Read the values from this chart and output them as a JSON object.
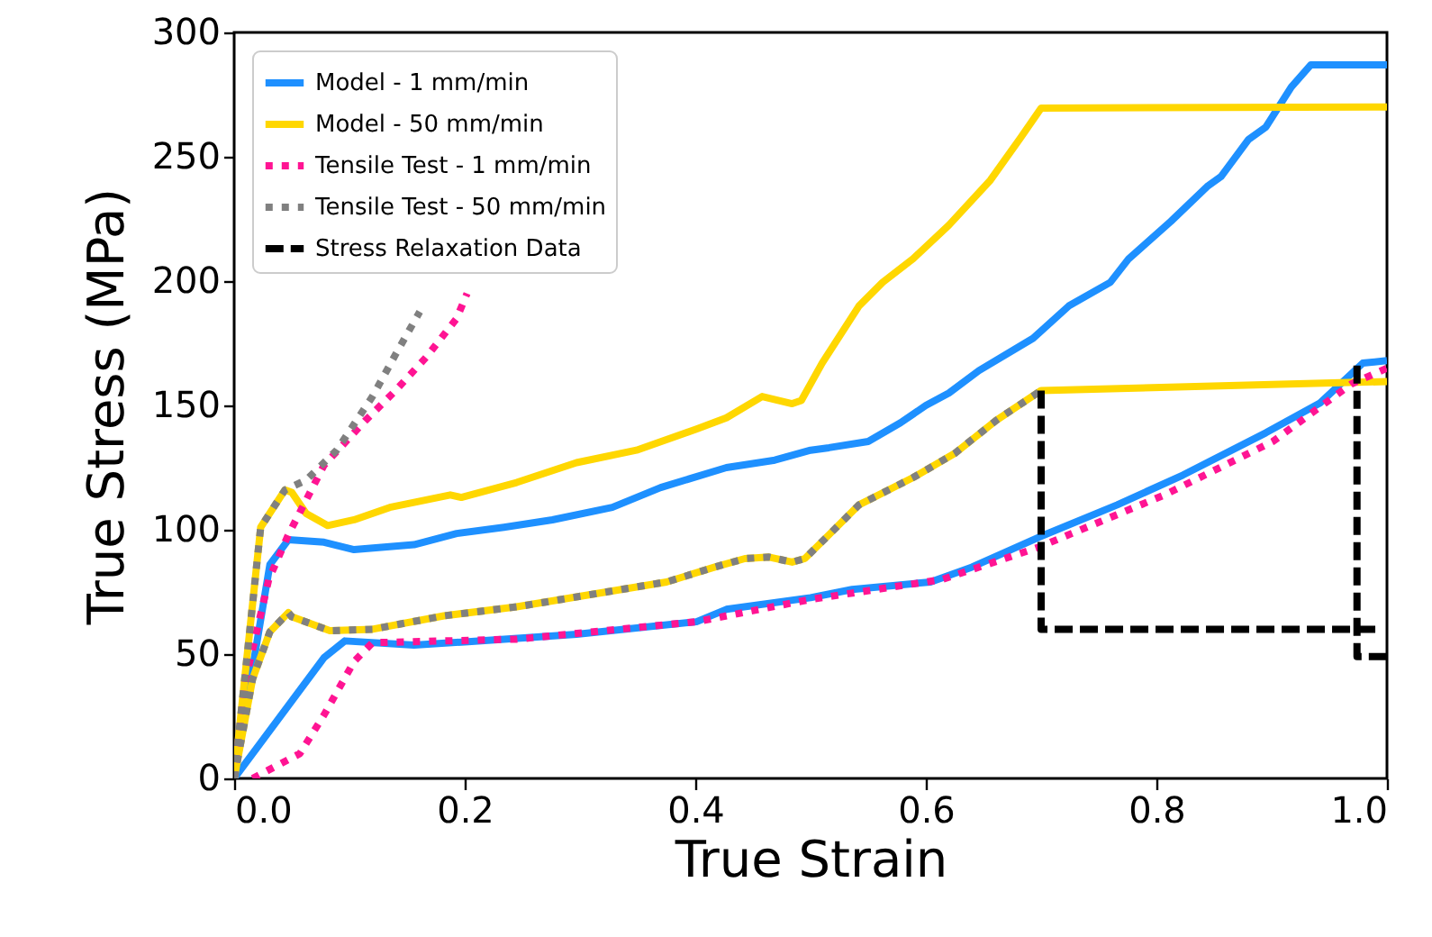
{
  "chart_data": {
    "type": "line",
    "xlabel": "True Strain",
    "ylabel": "True Stress (MPa)",
    "xlim": [
      0,
      1
    ],
    "ylim": [
      0,
      300
    ],
    "xticks": [
      {
        "value": 0,
        "label": "0.0"
      },
      {
        "value": 0.2,
        "label": "0.2"
      },
      {
        "value": 0.4,
        "label": "0.4"
      },
      {
        "value": 0.6,
        "label": "0.6"
      },
      {
        "value": 0.8,
        "label": "0.8"
      },
      {
        "value": 1,
        "label": "1.0"
      }
    ],
    "yticks": [
      0,
      50,
      100,
      150,
      200,
      250,
      300
    ],
    "grid": false,
    "legend": "top left",
    "marker": "none",
    "series": [
      {
        "name": "Model - 1 mm/min",
        "color": "#1e90ff",
        "line_style": "solid",
        "x": [
          0,
          0.031,
          0.047,
          0.078,
          0.104,
          0.13,
          0.156,
          0.193,
          0.234,
          0.276,
          0.328,
          0.37,
          0.427,
          0.469,
          0.5,
          0.516,
          0.55,
          0.578,
          0.6,
          0.62,
          0.646,
          0.693,
          0.724,
          0.76,
          0.776,
          0.8125,
          0.844,
          0.856,
          0.88,
          0.895,
          0.917,
          0.934,
          1.0
        ],
        "values": [
          0,
          86,
          96,
          95,
          92,
          93,
          94,
          98.5,
          101,
          104,
          109,
          117,
          125,
          128,
          132,
          133,
          135.5,
          143,
          150,
          155,
          164,
          177,
          190,
          199.5,
          209,
          224,
          238,
          242,
          257,
          262,
          278,
          287,
          287
        ]
      },
      {
        "name": "Model - 50 mm/min",
        "color": "#ffd700",
        "line_style": "solid",
        "x": [
          0,
          0.023,
          0.044,
          0.05,
          0.0625,
          0.081,
          0.104,
          0.135,
          0.1875,
          0.197,
          0.245,
          0.297,
          0.349,
          0.401,
          0.427,
          0.458,
          0.484,
          0.492,
          0.51,
          0.542,
          0.5625,
          0.589,
          0.62,
          0.656,
          0.682,
          0.7,
          1.0
        ],
        "values": [
          0,
          101,
          116,
          115,
          106.5,
          101.7,
          104,
          109,
          114,
          113,
          119,
          127,
          132,
          140.5,
          145,
          153.6,
          150.7,
          152,
          167,
          190,
          199.5,
          209,
          222.5,
          240.6,
          257.5,
          269.6,
          270
        ]
      },
      {
        "color": "#1e90ff",
        "line_style": "solid",
        "x": [
          0,
          0.078,
          0.096,
          0.156,
          0.203,
          0.297,
          0.401,
          0.427,
          0.5,
          0.536,
          0.604,
          0.64,
          0.698,
          0.766,
          0.823,
          0.895,
          0.942,
          0.979,
          1.0
        ],
        "values": [
          0,
          48.6,
          55.3,
          53.6,
          55,
          58,
          63,
          68,
          72.7,
          76,
          79,
          85,
          97,
          110,
          122,
          139,
          151,
          167,
          168
        ]
      },
      {
        "color": "#ffd700",
        "line_style": "solid",
        "x": [
          0,
          0.016,
          0.031,
          0.047,
          0.05,
          0.083,
          0.12,
          0.182,
          0.245,
          0.323,
          0.375,
          0.417,
          0.443,
          0.464,
          0.484,
          0.495,
          0.516,
          0.542,
          0.589,
          0.625,
          0.661,
          0.7,
          1.0
        ],
        "values": [
          0,
          40,
          59,
          66.7,
          65,
          59.4,
          60,
          65.4,
          69,
          75,
          79,
          85,
          88.4,
          89,
          87,
          88.4,
          98,
          110,
          121,
          130.7,
          144,
          156,
          159.6
        ]
      },
      {
        "name": "Tensile Test - 1 mm/min",
        "color": "#ff1493",
        "line_style": "dotted",
        "x": [
          0.016,
          0.057,
          0.078,
          0.104,
          0.12,
          0.245,
          0.401,
          0.5,
          0.614,
          0.698,
          0.807,
          0.901,
          0.969,
          1.0
        ],
        "values": [
          0,
          10,
          25.6,
          47,
          54.6,
          56,
          63,
          72,
          80,
          93,
          114,
          135.5,
          158.6,
          165
        ]
      },
      {
        "color": "#ff1493",
        "line_style": "dotted",
        "x": [
          0,
          0.01,
          0.03,
          0.047,
          0.078,
          0.114,
          0.14,
          0.167,
          0.193,
          0.202
        ],
        "values": [
          0,
          40,
          80,
          98,
          126,
          144,
          156,
          169.6,
          185,
          195
        ]
      },
      {
        "name": "Tensile Test - 50 mm/min",
        "color": "#808080",
        "line_style": "dotted",
        "x": [
          0,
          0.023,
          0.044,
          0.0625,
          0.089,
          0.12,
          0.14,
          0.161
        ],
        "values": [
          0,
          101,
          116,
          120,
          132,
          153.6,
          170.5,
          187.7
        ]
      },
      {
        "color": "#808080",
        "line_style": "dotted",
        "x": [
          0,
          0.016,
          0.031,
          0.047,
          0.05,
          0.083,
          0.12,
          0.182,
          0.245,
          0.323,
          0.375,
          0.417,
          0.443,
          0.464,
          0.484,
          0.495,
          0.516,
          0.542,
          0.589,
          0.625,
          0.661,
          0.7
        ],
        "values": [
          0,
          40,
          59,
          66.7,
          65,
          59.4,
          60,
          65.4,
          69,
          75,
          79,
          85,
          88.4,
          89,
          87,
          88.4,
          98,
          110,
          121,
          130.7,
          144,
          156
        ]
      },
      {
        "name": "Stress Relaxation Data",
        "color": "#000000",
        "line_style": "dashed",
        "x": [
          0.7,
          0.7,
          0.99
        ],
        "values": [
          156,
          60,
          60
        ]
      },
      {
        "color": "#000000",
        "line_style": "dashed",
        "x": [
          0.974,
          0.974,
          1.0
        ],
        "values": [
          166,
          49,
          49
        ]
      }
    ]
  }
}
